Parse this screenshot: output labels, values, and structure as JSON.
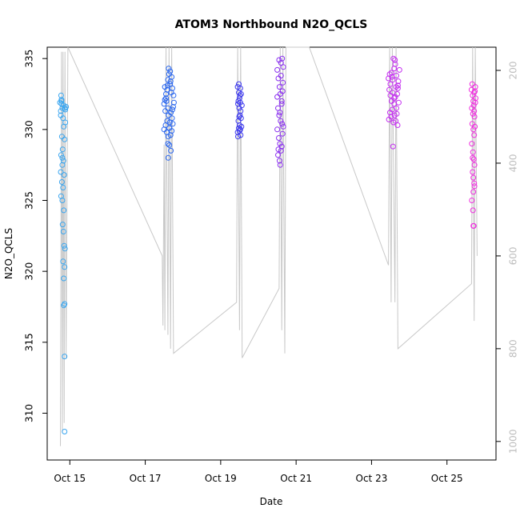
{
  "chart_data": {
    "type": "scatter",
    "title": "ATOM3 Northbound N2O_QCLS",
    "xlabel": "Date",
    "ylabel": "N2O_QCLS",
    "x_ticks": [
      "Oct 15",
      "Oct 17",
      "Oct 19",
      "Oct 21",
      "Oct 23",
      "Oct 25"
    ],
    "x_tick_days": [
      15,
      17,
      19,
      21,
      23,
      25
    ],
    "xlim": [
      14.4,
      26.3
    ],
    "ylim": [
      306.7,
      335.8
    ],
    "y_ticks": [
      310,
      315,
      320,
      325,
      330,
      335
    ],
    "secondary_axis": {
      "label": "",
      "ticks": [
        200,
        400,
        600,
        800,
        1000
      ],
      "lim": [
        1040,
        150
      ],
      "color": "#bdbdbd"
    },
    "grid": false,
    "legend": "none",
    "pressure_color": "#c8c8c8",
    "pressure_trace": [
      [
        14.75,
        1010
      ],
      [
        14.78,
        160
      ],
      [
        14.8,
        980
      ],
      [
        14.82,
        160
      ],
      [
        14.85,
        960
      ],
      [
        14.87,
        160
      ],
      [
        14.9,
        820
      ],
      [
        14.95,
        150
      ],
      [
        17.45,
        600
      ],
      [
        17.47,
        750
      ],
      [
        17.5,
        360
      ],
      [
        17.52,
        760
      ],
      [
        17.55,
        150
      ],
      [
        17.6,
        770
      ],
      [
        17.63,
        150
      ],
      [
        17.67,
        800
      ],
      [
        17.7,
        150
      ],
      [
        17.75,
        810
      ],
      [
        19.42,
        700
      ],
      [
        19.45,
        150
      ],
      [
        19.5,
        760
      ],
      [
        19.53,
        150
      ],
      [
        19.57,
        820
      ],
      [
        20.55,
        670
      ],
      [
        20.58,
        150
      ],
      [
        20.62,
        760
      ],
      [
        20.65,
        150
      ],
      [
        20.7,
        810
      ],
      [
        20.73,
        150
      ],
      [
        21.35,
        150
      ],
      [
        23.45,
        620
      ],
      [
        23.48,
        150
      ],
      [
        23.52,
        700
      ],
      [
        23.55,
        150
      ],
      [
        23.62,
        700
      ],
      [
        23.65,
        150
      ],
      [
        23.7,
        800
      ],
      [
        25.65,
        660
      ],
      [
        25.68,
        150
      ],
      [
        25.72,
        740
      ],
      [
        25.75,
        150
      ],
      [
        25.8,
        600
      ]
    ],
    "series": [
      {
        "color": "#3aa6f0",
        "points": [
          [
            14.78,
            331.8
          ],
          [
            14.8,
            331.5
          ],
          [
            14.76,
            331.0
          ],
          [
            14.82,
            330.8
          ],
          [
            14.84,
            330.2
          ],
          [
            14.79,
            329.5
          ],
          [
            14.86,
            329.3
          ],
          [
            14.81,
            328.6
          ],
          [
            14.77,
            328.2
          ],
          [
            14.83,
            327.8
          ],
          [
            14.8,
            327.5
          ],
          [
            14.76,
            327.0
          ],
          [
            14.85,
            326.8
          ],
          [
            14.79,
            326.3
          ],
          [
            14.82,
            325.9
          ],
          [
            14.77,
            325.3
          ],
          [
            14.8,
            325.0
          ],
          [
            14.84,
            324.3
          ],
          [
            14.81,
            323.3
          ],
          [
            14.83,
            322.8
          ],
          [
            14.85,
            321.8
          ],
          [
            14.87,
            321.6
          ],
          [
            14.82,
            320.7
          ],
          [
            14.86,
            320.3
          ],
          [
            14.84,
            319.5
          ],
          [
            14.86,
            317.7
          ],
          [
            14.84,
            317.6
          ],
          [
            14.86,
            314.0
          ],
          [
            14.88,
            331.4
          ],
          [
            14.9,
            331.6
          ],
          [
            14.78,
            332.0
          ],
          [
            14.84,
            331.7
          ],
          [
            14.77,
            332.4
          ],
          [
            14.88,
            330.5
          ],
          [
            14.78,
            332.1
          ],
          [
            14.8,
            328.0
          ],
          [
            14.76,
            331.3
          ],
          [
            14.87,
            331.5
          ],
          [
            14.86,
            308.7
          ],
          [
            14.74,
            331.9
          ]
        ]
      },
      {
        "color": "#2a67f0",
        "points": [
          [
            17.52,
            333.0
          ],
          [
            17.55,
            332.5
          ],
          [
            17.58,
            332.8
          ],
          [
            17.6,
            333.5
          ],
          [
            17.63,
            333.9
          ],
          [
            17.66,
            333.2
          ],
          [
            17.7,
            333.7
          ],
          [
            17.72,
            332.9
          ],
          [
            17.75,
            332.4
          ],
          [
            17.5,
            331.8
          ],
          [
            17.53,
            331.3
          ],
          [
            17.56,
            332.0
          ],
          [
            17.6,
            331.5
          ],
          [
            17.62,
            331.0
          ],
          [
            17.65,
            330.5
          ],
          [
            17.68,
            331.2
          ],
          [
            17.71,
            330.8
          ],
          [
            17.74,
            331.6
          ],
          [
            17.5,
            330.0
          ],
          [
            17.54,
            330.3
          ],
          [
            17.57,
            329.8
          ],
          [
            17.61,
            329.5
          ],
          [
            17.64,
            330.1
          ],
          [
            17.67,
            329.6
          ],
          [
            17.7,
            329.9
          ],
          [
            17.73,
            330.4
          ],
          [
            17.76,
            331.9
          ],
          [
            17.6,
            329.0
          ],
          [
            17.64,
            328.9
          ],
          [
            17.68,
            328.5
          ],
          [
            17.66,
            334.1
          ],
          [
            17.62,
            334.3
          ],
          [
            17.59,
            333.1
          ],
          [
            17.55,
            332.2
          ],
          [
            17.69,
            332.6
          ],
          [
            17.72,
            331.4
          ],
          [
            17.52,
            332.1
          ],
          [
            17.58,
            330.6
          ],
          [
            17.61,
            328.0
          ],
          [
            17.67,
            333.4
          ]
        ]
      },
      {
        "color": "#3a36f0",
        "points": [
          [
            19.45,
            333.0
          ],
          [
            19.48,
            332.6
          ],
          [
            19.5,
            332.2
          ],
          [
            19.52,
            332.9
          ],
          [
            19.54,
            332.5
          ],
          [
            19.46,
            331.8
          ],
          [
            19.49,
            331.5
          ],
          [
            19.51,
            331.0
          ],
          [
            19.53,
            331.3
          ],
          [
            19.47,
            330.6
          ],
          [
            19.5,
            330.3
          ],
          [
            19.52,
            330.0
          ],
          [
            19.55,
            330.2
          ],
          [
            19.45,
            329.8
          ],
          [
            19.48,
            330.1
          ],
          [
            19.5,
            329.9
          ],
          [
            19.53,
            329.6
          ],
          [
            19.56,
            331.7
          ],
          [
            19.47,
            332.0
          ],
          [
            19.51,
            332.4
          ],
          [
            19.54,
            330.8
          ],
          [
            19.46,
            329.5
          ],
          [
            19.49,
            330.9
          ],
          [
            19.52,
            331.9
          ],
          [
            19.48,
            333.2
          ]
        ]
      },
      {
        "color": "#8a2ef0",
        "points": [
          [
            20.5,
            334.2
          ],
          [
            20.53,
            333.6
          ],
          [
            20.56,
            333.0
          ],
          [
            20.6,
            334.7
          ],
          [
            20.63,
            335.0
          ],
          [
            20.66,
            334.4
          ],
          [
            20.58,
            332.5
          ],
          [
            20.62,
            332.0
          ],
          [
            20.65,
            333.3
          ],
          [
            20.52,
            331.5
          ],
          [
            20.55,
            331.0
          ],
          [
            20.59,
            330.6
          ],
          [
            20.62,
            331.8
          ],
          [
            20.66,
            330.2
          ],
          [
            20.5,
            330.0
          ],
          [
            20.54,
            329.4
          ],
          [
            20.57,
            329.0
          ],
          [
            20.6,
            328.5
          ],
          [
            20.64,
            329.7
          ],
          [
            20.52,
            328.2
          ],
          [
            20.56,
            327.8
          ],
          [
            20.58,
            327.5
          ],
          [
            20.62,
            328.8
          ],
          [
            20.6,
            333.8
          ],
          [
            20.55,
            334.9
          ],
          [
            20.64,
            332.7
          ],
          [
            20.5,
            332.3
          ],
          [
            20.57,
            331.2
          ],
          [
            20.63,
            330.4
          ],
          [
            20.53,
            328.6
          ]
        ]
      },
      {
        "color": "#c42ef0",
        "points": [
          [
            23.45,
            333.6
          ],
          [
            23.48,
            333.9
          ],
          [
            23.5,
            333.2
          ],
          [
            23.53,
            334.0
          ],
          [
            23.56,
            333.5
          ],
          [
            23.6,
            334.3
          ],
          [
            23.63,
            334.6
          ],
          [
            23.66,
            333.8
          ],
          [
            23.7,
            333.1
          ],
          [
            23.74,
            334.2
          ],
          [
            23.47,
            332.8
          ],
          [
            23.5,
            332.4
          ],
          [
            23.53,
            332.0
          ],
          [
            23.56,
            332.6
          ],
          [
            23.6,
            331.8
          ],
          [
            23.63,
            332.3
          ],
          [
            23.66,
            331.5
          ],
          [
            23.7,
            332.9
          ],
          [
            23.72,
            331.9
          ],
          [
            23.49,
            331.2
          ],
          [
            23.52,
            330.9
          ],
          [
            23.55,
            331.4
          ],
          [
            23.58,
            330.5
          ],
          [
            23.61,
            331.0
          ],
          [
            23.64,
            330.6
          ],
          [
            23.67,
            331.1
          ],
          [
            23.69,
            330.3
          ],
          [
            23.58,
            335.0
          ],
          [
            23.62,
            334.9
          ],
          [
            23.65,
            333.0
          ],
          [
            23.57,
            328.8
          ],
          [
            23.6,
            332.2
          ],
          [
            23.68,
            332.5
          ],
          [
            23.46,
            330.7
          ],
          [
            23.71,
            333.4
          ],
          [
            23.54,
            333.7
          ]
        ]
      },
      {
        "color": "#f02ee0",
        "points": [
          [
            25.65,
            332.8
          ],
          [
            25.68,
            332.4
          ],
          [
            25.7,
            332.0
          ],
          [
            25.72,
            332.6
          ],
          [
            25.75,
            333.0
          ],
          [
            25.66,
            331.5
          ],
          [
            25.69,
            331.1
          ],
          [
            25.71,
            331.7
          ],
          [
            25.73,
            330.9
          ],
          [
            25.76,
            332.2
          ],
          [
            25.67,
            330.4
          ],
          [
            25.7,
            330.0
          ],
          [
            25.72,
            329.6
          ],
          [
            25.74,
            330.2
          ],
          [
            25.66,
            329.0
          ],
          [
            25.69,
            328.4
          ],
          [
            25.71,
            327.9
          ],
          [
            25.73,
            327.5
          ],
          [
            25.68,
            327.0
          ],
          [
            25.7,
            326.6
          ],
          [
            25.72,
            326.2
          ],
          [
            25.7,
            325.6
          ],
          [
            25.66,
            325.0
          ],
          [
            25.69,
            324.3
          ],
          [
            25.71,
            323.2
          ],
          [
            25.73,
            326.0
          ],
          [
            25.75,
            331.9
          ],
          [
            25.74,
            332.7
          ],
          [
            25.67,
            333.2
          ],
          [
            25.72,
            331.3
          ],
          [
            25.68,
            328.0
          ],
          [
            25.7,
            323.2
          ]
        ]
      }
    ]
  }
}
